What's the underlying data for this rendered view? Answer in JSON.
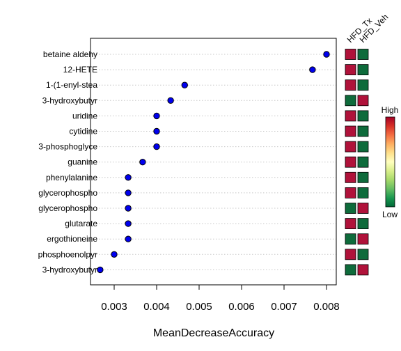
{
  "chart_data": {
    "type": "scatter",
    "title": "",
    "xlabel": "MeanDecreaseAccuracy",
    "ylabel": "",
    "xlim": [
      0.00245,
      0.0081
    ],
    "x_ticks": [
      0.003,
      0.004,
      0.005,
      0.006,
      0.007,
      0.008
    ],
    "x_tick_labels": [
      "0.003",
      "0.004",
      "0.005",
      "0.006",
      "0.007",
      "0.008"
    ],
    "grid": "horizontal dotted",
    "point_color": "#0000ee",
    "categories": [
      "betaine aldehy",
      "12-HETE",
      "1-(1-enyl-stea",
      "3-hydroxybutyr",
      "uridine",
      "cytidine",
      "3-phosphoglyce",
      "guanine",
      "phenylalanine",
      "glycerophospho",
      "glycerophospho",
      "glutarate",
      "ergothioneine",
      "phosphoenolpyr",
      "3-hydroxybutyr"
    ],
    "values": [
      0.008,
      0.00767,
      0.00466,
      0.00433,
      0.004,
      0.004,
      0.004,
      0.00367,
      0.00333,
      0.00333,
      0.00333,
      0.00333,
      0.00333,
      0.003,
      0.00267
    ],
    "heatmap": {
      "columns": [
        "HFD_Tx",
        "HFD_Veh"
      ],
      "rows": [
        [
          "High",
          "Low"
        ],
        [
          "High",
          "Low"
        ],
        [
          "High",
          "Low"
        ],
        [
          "Low",
          "High"
        ],
        [
          "High",
          "Low"
        ],
        [
          "High",
          "Low"
        ],
        [
          "High",
          "Low"
        ],
        [
          "High",
          "Low"
        ],
        [
          "High",
          "Low"
        ],
        [
          "High",
          "Low"
        ],
        [
          "Low",
          "High"
        ],
        [
          "High",
          "Low"
        ],
        [
          "Low",
          "High"
        ],
        [
          "High",
          "Low"
        ],
        [
          "Low",
          "High"
        ]
      ],
      "colors": {
        "High": "#b0123a",
        "Low": "#0e6b3b"
      }
    },
    "legend": {
      "high_label": "High",
      "low_label": "Low",
      "placement": "right",
      "gradient": [
        "#a50026",
        "#d73027",
        "#f46d43",
        "#fdae61",
        "#fee08b",
        "#ffffbf",
        "#d9ef8b",
        "#a6d96a",
        "#66bd63",
        "#1a9850",
        "#006837"
      ]
    }
  }
}
